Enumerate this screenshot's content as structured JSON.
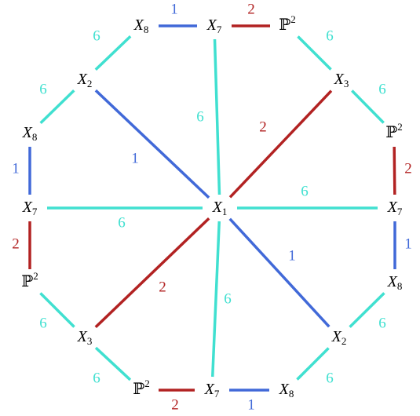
{
  "nodes": [
    {
      "label": "X",
      "sub": "8"
    },
    {
      "label": "X",
      "sub": "7"
    },
    {
      "label": "ℙ",
      "sup": "2"
    },
    {
      "label": "X",
      "sub": "2"
    },
    {
      "label": "X",
      "sub": "3"
    },
    {
      "label": "X",
      "sub": "8"
    },
    {
      "label": "ℙ",
      "sup": "2"
    },
    {
      "label": "X",
      "sub": "7"
    },
    {
      "label": "X",
      "sub": "1"
    },
    {
      "label": "X",
      "sub": "7"
    },
    {
      "label": "ℙ",
      "sup": "2"
    },
    {
      "label": "X",
      "sub": "8"
    },
    {
      "label": "X",
      "sub": "3"
    },
    {
      "label": "X",
      "sub": "2"
    },
    {
      "label": "ℙ",
      "sup": "2"
    },
    {
      "label": "X",
      "sub": "7"
    },
    {
      "label": "X",
      "sub": "8"
    }
  ],
  "edges": [
    {
      "from": 0,
      "to": 1,
      "label": "1",
      "color": "#4169d8"
    },
    {
      "from": 1,
      "to": 2,
      "label": "2",
      "color": "#b22222"
    },
    {
      "from": 3,
      "to": 0,
      "label": "6",
      "color": "#40e0d0"
    },
    {
      "from": 2,
      "to": 4,
      "label": "6",
      "color": "#40e0d0"
    },
    {
      "from": 5,
      "to": 3,
      "label": "6",
      "color": "#40e0d0"
    },
    {
      "from": 4,
      "to": 6,
      "label": "6",
      "color": "#40e0d0"
    },
    {
      "from": 5,
      "to": 7,
      "label": "1",
      "color": "#4169d8"
    },
    {
      "from": 6,
      "to": 9,
      "label": "2",
      "color": "#b22222"
    },
    {
      "from": 7,
      "to": 10,
      "label": "2",
      "color": "#b22222"
    },
    {
      "from": 9,
      "to": 11,
      "label": "1",
      "color": "#4169d8"
    },
    {
      "from": 10,
      "to": 12,
      "label": "6",
      "color": "#40e0d0"
    },
    {
      "from": 11,
      "to": 13,
      "label": "6",
      "color": "#40e0d0"
    },
    {
      "from": 12,
      "to": 14,
      "label": "6",
      "color": "#40e0d0"
    },
    {
      "from": 13,
      "to": 16,
      "label": "6",
      "color": "#40e0d0"
    },
    {
      "from": 14,
      "to": 15,
      "label": "2",
      "color": "#b22222"
    },
    {
      "from": 15,
      "to": 16,
      "label": "1",
      "color": "#4169d8"
    },
    {
      "from": 8,
      "to": 1,
      "label": "6",
      "color": "#40e0d0"
    },
    {
      "from": 8,
      "to": 4,
      "label": "2",
      "color": "#b22222"
    },
    {
      "from": 8,
      "to": 3,
      "label": "1",
      "color": "#4169d8"
    },
    {
      "from": 8,
      "to": 9,
      "label": "6",
      "color": "#40e0d0"
    },
    {
      "from": 8,
      "to": 13,
      "label": "1",
      "color": "#4169d8"
    },
    {
      "from": 8,
      "to": 7,
      "label": "6",
      "color": "#40e0d0"
    },
    {
      "from": 8,
      "to": 12,
      "label": "2",
      "color": "#b22222"
    },
    {
      "from": 8,
      "to": 15,
      "label": "6",
      "color": "#40e0d0"
    }
  ]
}
